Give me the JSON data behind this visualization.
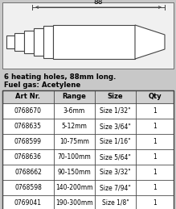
{
  "title_line1": "6 heating holes, 88mm long.",
  "title_line2": "Fuel gas: Acetylene",
  "dimension_label": "88",
  "table_headers": [
    "Art Nr.",
    "Range",
    "Size",
    "Qty"
  ],
  "table_rows": [
    [
      "0768670",
      "3-6mm",
      "Size 1/32\"",
      "1"
    ],
    [
      "0768635",
      "5-12mm",
      "Size 3/64\"",
      "1"
    ],
    [
      "0768599",
      "10-75mm",
      "Size 1/16\"",
      "1"
    ],
    [
      "0768636",
      "70-100mm",
      "Size 5/64\"",
      "1"
    ],
    [
      "0768662",
      "90-150mm",
      "Size 3/32\"",
      "1"
    ],
    [
      "0768598",
      "140-200mm",
      "Size 7/94\"",
      "1"
    ],
    [
      "0769041",
      "190-300mm",
      "Size 1/8\"",
      "1"
    ]
  ],
  "bg_color": "#c8c8c8",
  "nozzle_fill": "#ffffff",
  "table_bg": "#ffffff",
  "header_bg": "#d0d0d0",
  "text_color": "#000000",
  "line_color": "#444444",
  "dim_line_color": "#444444"
}
